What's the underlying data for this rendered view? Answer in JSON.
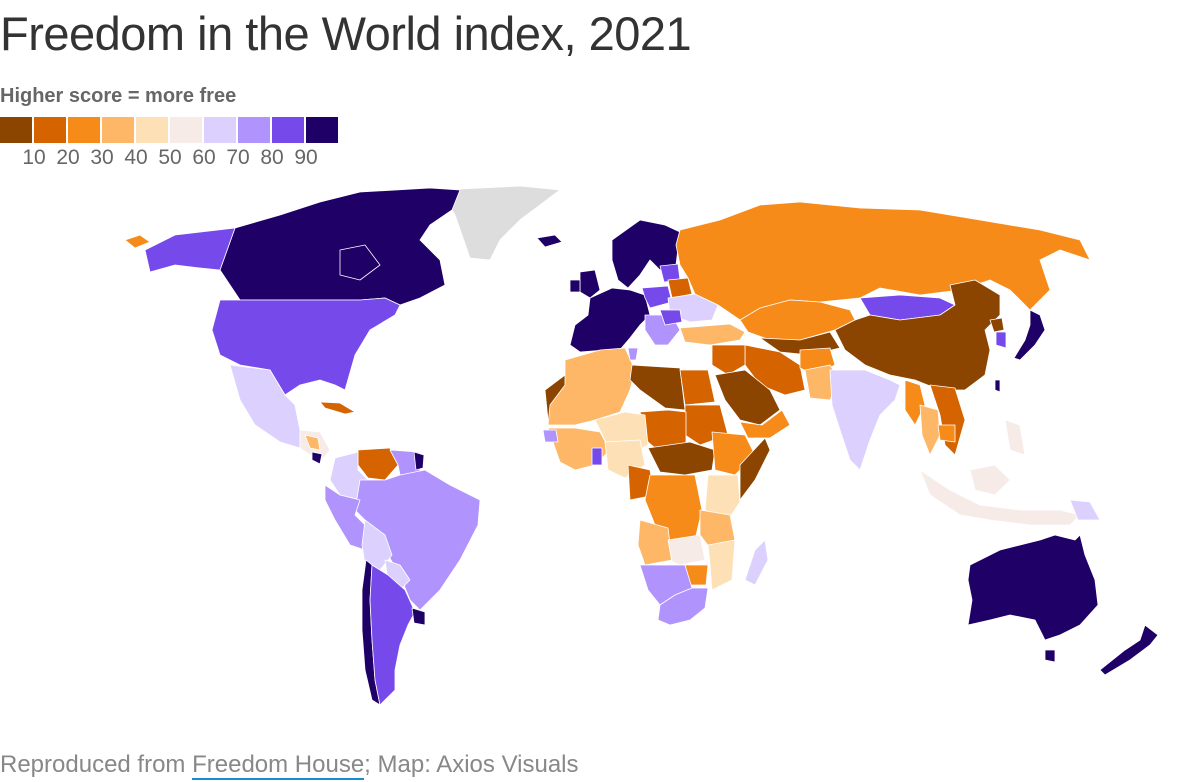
{
  "title": "Freedom in the World index, 2021",
  "legend": {
    "subtitle": "Higher score = more free",
    "colors": [
      "#8b4500",
      "#d46300",
      "#f68b1a",
      "#fdb766",
      "#fee0b6",
      "#f7ebe8",
      "#dcd1fe",
      "#b093fc",
      "#7649ea",
      "#1f0066"
    ],
    "labels": [
      "10",
      "20",
      "30",
      "40",
      "50",
      "60",
      "70",
      "80",
      "90"
    ]
  },
  "no_data_color": "#dddddd",
  "footer": {
    "prefix": "Reproduced from ",
    "link_text": "Freedom House",
    "suffix": "; Map: Axios Visuals",
    "link_color": "#1a8ad4"
  },
  "chart_data": {
    "type": "choropleth",
    "title": "Freedom in the World index, 2021",
    "subtitle": "Higher score = more free",
    "scale": {
      "bins": [
        [
          0,
          10
        ],
        [
          10,
          20
        ],
        [
          20,
          30
        ],
        [
          30,
          40
        ],
        [
          40,
          50
        ],
        [
          50,
          60
        ],
        [
          60,
          70
        ],
        [
          70,
          80
        ],
        [
          80,
          90
        ],
        [
          90,
          100
        ]
      ],
      "colors": [
        "#8b4500",
        "#d46300",
        "#f68b1a",
        "#fdb766",
        "#fee0b6",
        "#f7ebe8",
        "#dcd1fe",
        "#b093fc",
        "#7649ea",
        "#1f0066"
      ],
      "tick_labels": [
        "10",
        "20",
        "30",
        "40",
        "50",
        "60",
        "70",
        "80",
        "90"
      ]
    },
    "regions": [
      {
        "name": "Canada",
        "bin": "90-100"
      },
      {
        "name": "Greenland",
        "bin": "no data"
      },
      {
        "name": "United States",
        "bin": "80-90"
      },
      {
        "name": "Alaska (US)",
        "bin": "80-90"
      },
      {
        "name": "Mexico",
        "bin": "60-70"
      },
      {
        "name": "Cuba",
        "bin": "10-20"
      },
      {
        "name": "Venezuela",
        "bin": "10-20"
      },
      {
        "name": "Brazil",
        "bin": "70-80"
      },
      {
        "name": "Colombia",
        "bin": "60-70"
      },
      {
        "name": "Peru",
        "bin": "70-80"
      },
      {
        "name": "Bolivia",
        "bin": "60-70"
      },
      {
        "name": "Paraguay",
        "bin": "60-70"
      },
      {
        "name": "Argentina",
        "bin": "80-90"
      },
      {
        "name": "Chile",
        "bin": "90-100"
      },
      {
        "name": "Uruguay",
        "bin": "90-100"
      },
      {
        "name": "Western Europe",
        "bin": "90-100"
      },
      {
        "name": "Poland",
        "bin": "80-90"
      },
      {
        "name": "Belarus",
        "bin": "10-20"
      },
      {
        "name": "Ukraine",
        "bin": "60-70"
      },
      {
        "name": "Russia",
        "bin": "20-30"
      },
      {
        "name": "Turkey",
        "bin": "30-40"
      },
      {
        "name": "Kazakhstan",
        "bin": "20-30"
      },
      {
        "name": "Mongolia",
        "bin": "80-90"
      },
      {
        "name": "China",
        "bin": "0-10"
      },
      {
        "name": "Japan",
        "bin": "90-100"
      },
      {
        "name": "South Korea",
        "bin": "80-90"
      },
      {
        "name": "India",
        "bin": "60-70"
      },
      {
        "name": "Iran",
        "bin": "10-20"
      },
      {
        "name": "Saudi Arabia",
        "bin": "0-10"
      },
      {
        "name": "Libya",
        "bin": "0-10"
      },
      {
        "name": "Egypt",
        "bin": "10-20"
      },
      {
        "name": "Sudan",
        "bin": "10-20"
      },
      {
        "name": "Somalia",
        "bin": "0-10"
      },
      {
        "name": "Ethiopia",
        "bin": "20-30"
      },
      {
        "name": "DR Congo",
        "bin": "20-30"
      },
      {
        "name": "Algeria",
        "bin": "30-40"
      },
      {
        "name": "Nigeria",
        "bin": "40-50"
      },
      {
        "name": "Ghana",
        "bin": "80-90"
      },
      {
        "name": "Namibia",
        "bin": "70-80"
      },
      {
        "name": "South Africa",
        "bin": "70-80"
      },
      {
        "name": "Madagascar",
        "bin": "60-70"
      },
      {
        "name": "Indonesia",
        "bin": "50-60"
      },
      {
        "name": "Papua New Guinea",
        "bin": "60-70"
      },
      {
        "name": "Australia",
        "bin": "90-100"
      },
      {
        "name": "New Zealand",
        "bin": "90-100"
      }
    ]
  }
}
